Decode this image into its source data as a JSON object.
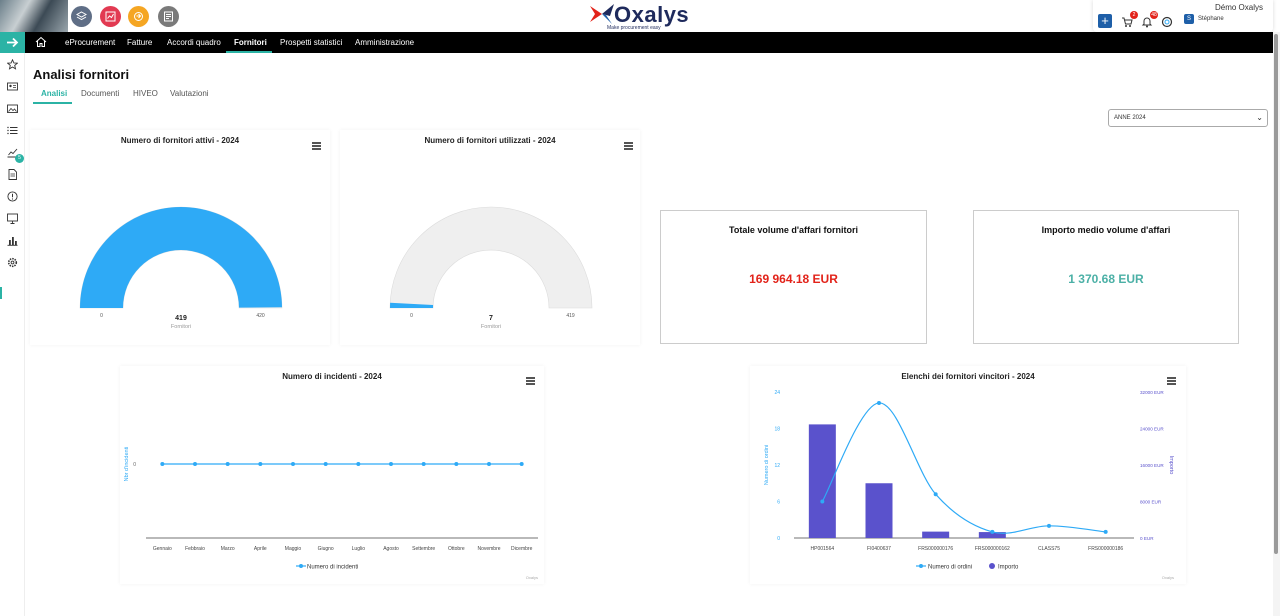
{
  "header": {
    "logo_text": "Oxalys",
    "logo_tagline": "Make procurement easy",
    "company": "Démo Oxalys",
    "user_initial": "S",
    "user_name": "Stéphane",
    "cart_badge": "2",
    "bell_badge": "48"
  },
  "nav": {
    "items": [
      {
        "label": "eProcurement"
      },
      {
        "label": "Fatture"
      },
      {
        "label": "Accordi quadro"
      },
      {
        "label": "Fornitori"
      },
      {
        "label": "Prospetti statistici"
      },
      {
        "label": "Amministrazione"
      }
    ],
    "active_index": 3
  },
  "sidebar": {
    "items": [
      "favorites-icon",
      "contact-card-icon",
      "image-folder-icon",
      "list-icon",
      "analytics-icon",
      "document-icon",
      "alert-icon",
      "monitor-icon",
      "bar-chart-icon",
      "settings-icon"
    ],
    "analytics_badge": "5"
  },
  "page": {
    "title": "Analisi fornitori",
    "tabs": [
      {
        "label": "Analisi"
      },
      {
        "label": "Documenti"
      },
      {
        "label": "HIVEO"
      },
      {
        "label": "Valutazioni"
      }
    ],
    "active_tab": 0,
    "year_select": "ANNE 2024"
  },
  "kpis": [
    {
      "title": "Totale volume d'affari fornitori",
      "value": "169 964.18 EUR",
      "color": "#e2231a"
    },
    {
      "title": "Importo medio volume d'affari",
      "value": "1 370.68 EUR",
      "color": "#4bb0a6"
    }
  ],
  "chart_data": [
    {
      "type": "gauge",
      "title": "Numero di fornitori attivi - 2024",
      "value": 419,
      "min": 0,
      "max": 420,
      "min_label": "0",
      "max_label": "420",
      "value_label": "419",
      "unit_label": "Fornitori",
      "color": "#2eaaf6"
    },
    {
      "type": "gauge",
      "title": "Numero di fornitori utilizzati - 2024",
      "value": 7,
      "min": 0,
      "max": 419,
      "min_label": "0",
      "max_label": "419",
      "value_label": "7",
      "unit_label": "Fornitori",
      "color": "#2eaaf6"
    },
    {
      "type": "line",
      "title": "Numero di incidenti - 2024",
      "ylabel": "Nbr d'incidenti",
      "categories": [
        "Gennaio",
        "Febbraio",
        "Marzo",
        "Aprile",
        "Maggio",
        "Giugno",
        "Luglio",
        "Agosto",
        "Settembre",
        "Ottobre",
        "Novembre",
        "Dicembre"
      ],
      "series": [
        {
          "name": "Numero di incidenti",
          "values": [
            0,
            0,
            0,
            0,
            0,
            0,
            0,
            0,
            0,
            0,
            0,
            0
          ]
        }
      ],
      "y_ticks": [
        "0"
      ],
      "credit": "Oxalys",
      "color": "#2eaaf6"
    },
    {
      "type": "bar+line",
      "title": "Elenchi dei fornitori vincitori - 2024",
      "categories": [
        "HP001564",
        "FI0400637",
        "FRS000000176",
        "FRS000000162",
        "CLASS75",
        "FRS000000186"
      ],
      "ylabel_left": "Numero di ordini",
      "ylabel_right": "Importo",
      "ylim_left": [
        0,
        24
      ],
      "ylim_right": [
        0,
        32000
      ],
      "y_ticks_left": [
        "0",
        "6",
        "12",
        "18",
        "24"
      ],
      "y_ticks_right": [
        "0 EUR",
        "8000 EUR",
        "16000 EUR",
        "24000 EUR",
        "32000 EUR"
      ],
      "series": [
        {
          "name": "Numero di ordini",
          "type": "spline",
          "axis": "left",
          "values": [
            6,
            22.2,
            7.2,
            1,
            2,
            1
          ],
          "color": "#2eaaf6"
        },
        {
          "name": "Importo",
          "type": "column",
          "axis": "right",
          "values": [
            24900,
            12000,
            1400,
            1300,
            0,
            0
          ],
          "color": "#5a52cc"
        }
      ],
      "credit": "Oxalys"
    }
  ]
}
